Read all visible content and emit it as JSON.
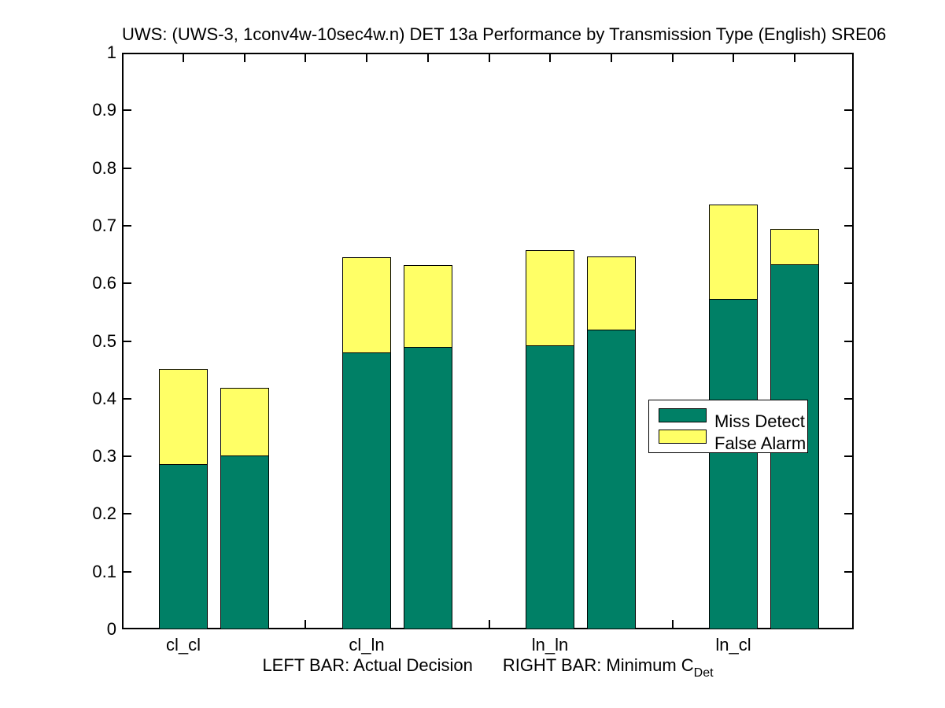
{
  "title": "UWS: (UWS-3, 1conv4w-10sec4w.n) DET 13a Performance by Transmission Type (English) SRE06",
  "colors": {
    "miss_detect": "#008066",
    "false_alarm": "#ffff66",
    "axis": "#000000",
    "background": "#ffffff"
  },
  "legend": {
    "items": [
      {
        "label": "Miss Detect",
        "color": "#008066"
      },
      {
        "label": "False Alarm",
        "color": "#ffff66"
      }
    ]
  },
  "xlabel": {
    "left_text": "LEFT BAR: Actual Decision",
    "right_text": "RIGHT BAR: Minimum C",
    "subscript": "Det"
  },
  "chart_data": {
    "type": "bar",
    "stacked": true,
    "title": "UWS: (UWS-3, 1conv4w-10sec4w.n) DET 13a Performance by Transmission Type (English) SRE06",
    "categories": [
      "cl_cl",
      "cl_ln",
      "ln_ln",
      "ln_cl"
    ],
    "bar_pair_meaning": {
      "left": "Actual Decision",
      "right": "Minimum CDet"
    },
    "series": [
      {
        "name": "Miss Detect",
        "color": "#008066",
        "left": [
          0.285,
          0.479,
          0.491,
          0.572
        ],
        "right": [
          0.3,
          0.489,
          0.519,
          0.631
        ]
      },
      {
        "name": "False Alarm",
        "color": "#ffff66",
        "left": [
          0.166,
          0.166,
          0.166,
          0.165
        ],
        "right": [
          0.119,
          0.142,
          0.128,
          0.063
        ]
      }
    ],
    "stack_totals": {
      "left": [
        0.451,
        0.645,
        0.657,
        0.737
      ],
      "right": [
        0.419,
        0.631,
        0.647,
        0.694
      ]
    },
    "ylim": [
      0,
      1
    ],
    "ytick_labels": [
      "0",
      "0.1",
      "0.2",
      "0.3",
      "0.4",
      "0.5",
      "0.6",
      "0.7",
      "0.8",
      "0.9",
      "1"
    ],
    "grid": false,
    "legend_position": "middle-right"
  }
}
